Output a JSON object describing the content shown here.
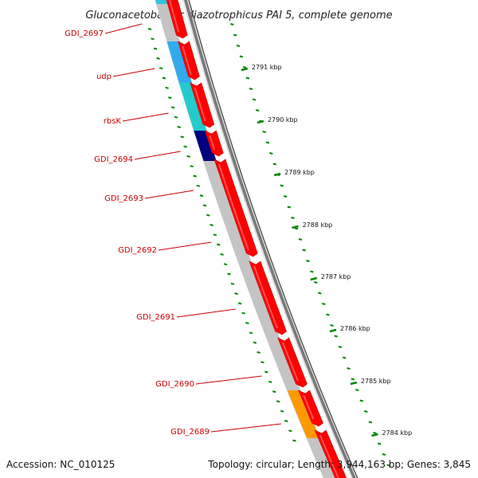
{
  "title": "Gluconacetobacter diazotrophicus PAI 5, complete genome",
  "genes": [
    {
      "id": "GDI_2697"
    },
    {
      "id": "udp"
    },
    {
      "id": "rbsK"
    },
    {
      "id": "GDI_2694"
    },
    {
      "id": "GDI_2693"
    },
    {
      "id": "GDI_2692"
    },
    {
      "id": "GDI_2691"
    },
    {
      "id": "GDI_2690"
    },
    {
      "id": "GDI_2689"
    }
  ],
  "ticks": [
    {
      "label": "2791 kbp"
    },
    {
      "label": "2790 kbp"
    },
    {
      "label": "2789 kbp"
    },
    {
      "label": "2788 kbp"
    },
    {
      "label": "2787 kbp"
    },
    {
      "label": "2786 kbp"
    },
    {
      "label": "2785 kbp"
    },
    {
      "label": "2784 kbp"
    }
  ],
  "colors": {
    "cds": "#ff0000",
    "backbone": "#c0c0c0",
    "label": "#cc0000",
    "tick": "#008800",
    "udp": "#33aaee",
    "rbsK": "#22cccc",
    "GDI_2694": "#000080",
    "GDI_2689": "#ff9900"
  },
  "footer": {
    "accession": "Accession: NC_010125",
    "summary": "Topology: circular; Length: 3,944,163 bp; Genes: 3,845"
  }
}
